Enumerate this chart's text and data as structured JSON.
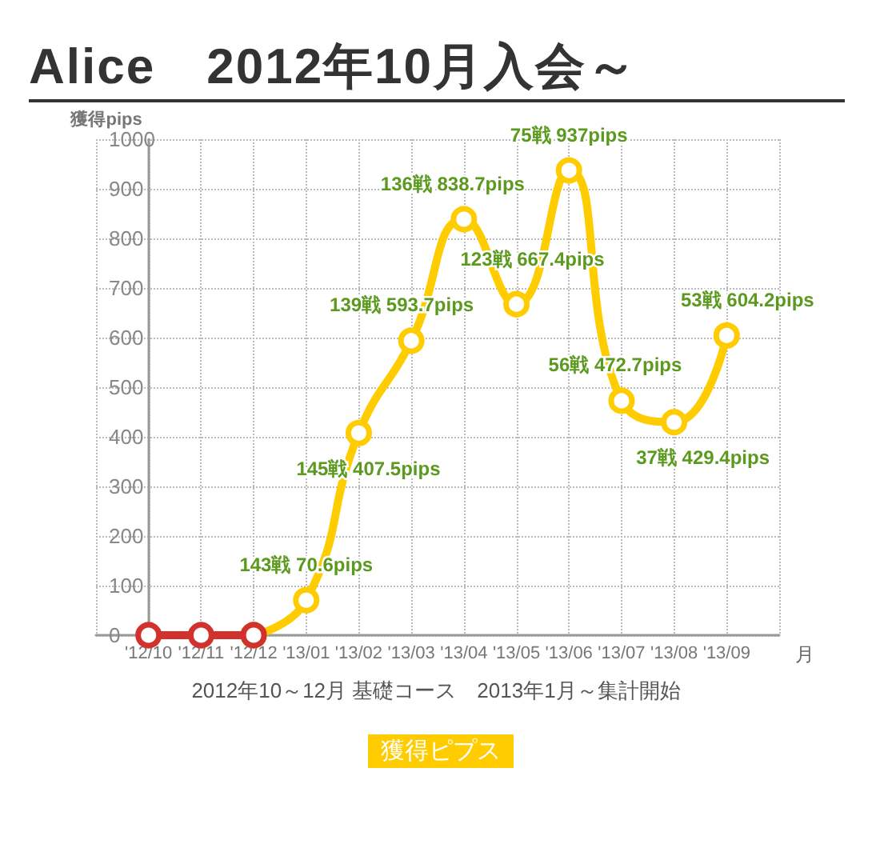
{
  "chart_data": {
    "type": "line",
    "title": "Alice　2012年10月入会～",
    "ylabel": "獲得pips",
    "xlabel": "月",
    "annotations": [
      "2012年10～12月 基礎コース　2013年1月～集計開始"
    ],
    "categories": [
      "'12/10",
      "'12/11",
      "'12/12",
      "'13/01",
      "'13/02",
      "'13/03",
      "'13/04",
      "'13/05",
      "'13/06",
      "'13/07",
      "'13/08",
      "'13/09"
    ],
    "series": [
      {
        "color": "#d2322d",
        "values": [
          0,
          0,
          0,
          null,
          null,
          null,
          null,
          null,
          null,
          null,
          null,
          null
        ]
      },
      {
        "name": "獲得ピプス",
        "color": "#ffcc00",
        "values": [
          null,
          null,
          0,
          70.6,
          407.5,
          593.7,
          838.7,
          667.4,
          937,
          472.7,
          429.4,
          604.2
        ],
        "value_labels": [
          null,
          null,
          null,
          "143戦 70.6pips",
          "145戦 407.5pips",
          "139戦 593.7pips",
          "136戦 838.7pips",
          "123戦 667.4pips",
          "75戦 937pips",
          "56戦 472.7pips",
          "37戦 429.4pips",
          "53戦 604.2pips"
        ]
      }
    ],
    "ylim": [
      0,
      1000
    ],
    "yticks": [
      0,
      100,
      200,
      300,
      400,
      500,
      600,
      700,
      800,
      900,
      1000
    ],
    "grid": true,
    "legend": "bottom",
    "marker": "circle",
    "line_style": "solid"
  }
}
